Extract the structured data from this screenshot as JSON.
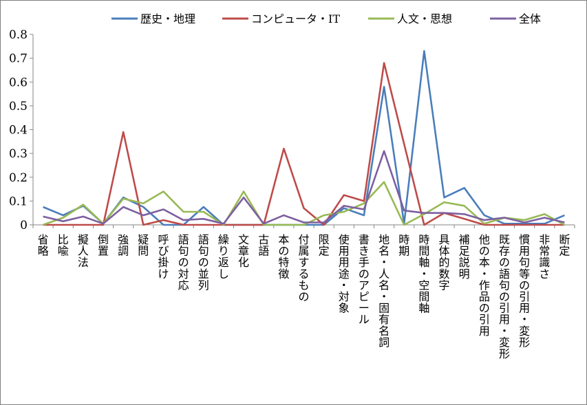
{
  "chart_data": {
    "type": "line",
    "title": "",
    "xlabel": "",
    "ylabel": "",
    "ylim": [
      0,
      0.8
    ],
    "yticks": [
      "0",
      "0.1",
      "0.2",
      "0.3",
      "0.4",
      "0.5",
      "0.6",
      "0.7",
      "0.8"
    ],
    "grid": false,
    "legend_position": "top",
    "categories": [
      "省略",
      "比喩",
      "擬人法",
      "倒置",
      "強調",
      "疑問",
      "呼び掛け",
      "語句の対応",
      "語句の並列",
      "繰り返し",
      "文章化",
      "古語",
      "本の特徴",
      "付属するもの",
      "限定",
      "使用用途・対象",
      "書き手のアピール",
      "地名・人名・固有名詞",
      "時期",
      "時間軸・空間軸",
      "具体的数字",
      "補足説明",
      "他の本・作品の引用",
      "既存の語句の引用・変形",
      "慣用句等の引用・変形",
      "非常識さ",
      "断定"
    ],
    "series": [
      {
        "name": "歴史・地理",
        "color": "#4a7ebb",
        "values": [
          0.075,
          0.04,
          0.08,
          0.005,
          0.115,
          0.075,
          0,
          0,
          0.075,
          0,
          0,
          0,
          0,
          0,
          0,
          0.07,
          0.04,
          0.58,
          0.005,
          0.73,
          0.115,
          0.155,
          0.04,
          0.005,
          0.005,
          0.005,
          0.04
        ]
      },
      {
        "name": "コンピュータ・IT",
        "color": "#be4b48",
        "values": [
          0,
          0,
          0,
          0,
          0.39,
          0,
          0.02,
          0,
          0,
          0,
          0,
          0,
          0.32,
          0.07,
          0,
          0.125,
          0.1,
          0.68,
          0.34,
          0,
          0.05,
          0.025,
          0,
          0,
          0,
          0,
          0
        ]
      },
      {
        "name": "人文・思想",
        "color": "#98b954",
        "values": [
          0,
          0.03,
          0.085,
          0.005,
          0.11,
          0.09,
          0.14,
          0.055,
          0.055,
          0,
          0.14,
          0,
          0,
          0,
          0.04,
          0.055,
          0.09,
          0.18,
          0,
          0.045,
          0.095,
          0.08,
          0.005,
          0.03,
          0.02,
          0.045,
          0
        ]
      },
      {
        "name": "全体",
        "color": "#7d60a0",
        "values": [
          0.035,
          0.015,
          0.035,
          0.005,
          0.075,
          0.04,
          0.065,
          0.02,
          0.025,
          0.005,
          0.115,
          0.005,
          0.04,
          0.01,
          0.01,
          0.08,
          0.065,
          0.31,
          0.06,
          0.05,
          0.05,
          0.045,
          0.02,
          0.03,
          0.01,
          0.03,
          0.01
        ]
      }
    ]
  }
}
